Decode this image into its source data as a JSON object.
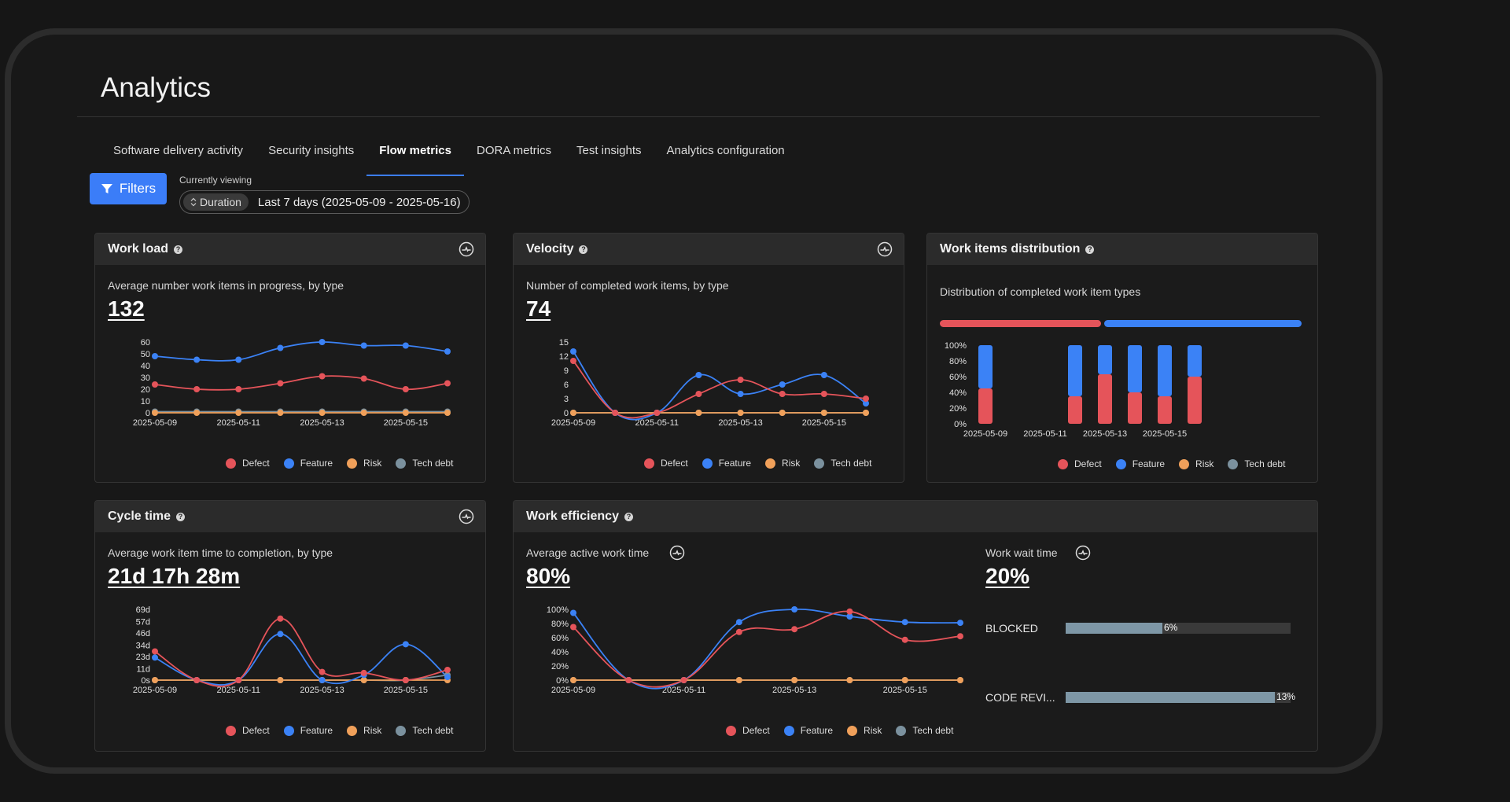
{
  "page": {
    "title": "Analytics"
  },
  "tabs": [
    {
      "label": "Software delivery activity",
      "active": false
    },
    {
      "label": "Security insights",
      "active": false
    },
    {
      "label": "Flow metrics",
      "active": true
    },
    {
      "label": "DORA metrics",
      "active": false
    },
    {
      "label": "Test insights",
      "active": false
    },
    {
      "label": "Analytics configuration",
      "active": false
    }
  ],
  "filters": {
    "button_label": "Filters",
    "currently_viewing_label": "Currently viewing",
    "duration_tag": "Duration",
    "duration_value": "Last 7 days (2025-05-09 - 2025-05-16)"
  },
  "legend_series": [
    {
      "name": "Defect",
      "color": "#e5545a"
    },
    {
      "name": "Feature",
      "color": "#3b82f6"
    },
    {
      "name": "Risk",
      "color": "#f0a05a"
    },
    {
      "name": "Tech debt",
      "color": "#7b919e"
    }
  ],
  "cards": {
    "workload": {
      "title": "Work load",
      "subtitle": "Average number work items in progress, by type",
      "value": "132"
    },
    "velocity": {
      "title": "Velocity",
      "subtitle": "Number of completed work items, by type",
      "value": "74"
    },
    "distribution": {
      "title": "Work items distribution",
      "subtitle": "Distribution of completed work item types"
    },
    "cycle": {
      "title": "Cycle time",
      "subtitle": "Average work item time to completion, by type",
      "value": "21d 17h 28m"
    },
    "efficiency": {
      "title": "Work efficiency",
      "active_label": "Average active work time",
      "active_value": "80%",
      "wait_label": "Work wait time",
      "wait_value": "20%",
      "wait_rows": [
        {
          "label": "BLOCKED",
          "pct": 6,
          "pct_label": "6%"
        },
        {
          "label": "CODE REVI...",
          "pct": 13,
          "pct_label": "13%"
        }
      ]
    }
  },
  "chart_data": [
    {
      "id": "workload",
      "type": "line",
      "x": [
        "2025-05-09",
        "2025-05-10",
        "2025-05-11",
        "2025-05-12",
        "2025-05-13",
        "2025-05-14",
        "2025-05-15",
        "2025-05-16"
      ],
      "xtick_labels": [
        "2025-05-09",
        "2025-05-11",
        "2025-05-13",
        "2025-05-15"
      ],
      "ylim": [
        0,
        60
      ],
      "yticks": [
        0,
        10,
        20,
        30,
        40,
        50,
        60
      ],
      "ytick_labels": [
        "0",
        "10",
        "20",
        "30",
        "40",
        "50",
        "60"
      ],
      "series": [
        {
          "name": "Defect",
          "values": [
            24,
            20,
            20,
            25,
            31,
            29,
            20,
            25
          ]
        },
        {
          "name": "Feature",
          "values": [
            48,
            45,
            45,
            55,
            60,
            57,
            57,
            52
          ]
        },
        {
          "name": "Risk",
          "values": [
            0,
            0,
            0,
            0,
            0,
            0,
            0,
            0
          ]
        },
        {
          "name": "Tech debt",
          "values": [
            1,
            1,
            1,
            1,
            1,
            1,
            1,
            1
          ]
        }
      ]
    },
    {
      "id": "velocity",
      "type": "line",
      "x": [
        "2025-05-09",
        "2025-05-10",
        "2025-05-11",
        "2025-05-12",
        "2025-05-13",
        "2025-05-14",
        "2025-05-15",
        "2025-05-16"
      ],
      "xtick_labels": [
        "2025-05-09",
        "2025-05-11",
        "2025-05-13",
        "2025-05-15"
      ],
      "ylim": [
        0,
        15
      ],
      "yticks": [
        0,
        3,
        6,
        9,
        12,
        15
      ],
      "ytick_labels": [
        "0",
        "3",
        "6",
        "9",
        "12",
        "15"
      ],
      "series": [
        {
          "name": "Defect",
          "values": [
            11,
            0,
            0,
            4,
            7,
            4,
            4,
            3
          ]
        },
        {
          "name": "Feature",
          "values": [
            13,
            0,
            0,
            8,
            4,
            6,
            8,
            2
          ]
        },
        {
          "name": "Risk",
          "values": [
            0,
            0,
            0,
            0,
            0,
            0,
            0,
            0
          ]
        },
        {
          "name": "Tech debt",
          "values": [
            0,
            0,
            0,
            0,
            0,
            0,
            0,
            0
          ]
        }
      ]
    },
    {
      "id": "distribution",
      "type": "bar",
      "x": [
        "2025-05-09",
        "2025-05-10",
        "2025-05-11",
        "2025-05-12",
        "2025-05-13",
        "2025-05-14",
        "2025-05-15",
        "2025-05-16"
      ],
      "xtick_labels": [
        "2025-05-09",
        "2025-05-11",
        "2025-05-13",
        "2025-05-15"
      ],
      "ylim": [
        0,
        100
      ],
      "yticks": [
        0,
        20,
        40,
        60,
        80,
        100
      ],
      "ytick_labels": [
        "0%",
        "20%",
        "40%",
        "60%",
        "80%",
        "100%"
      ],
      "stacked": true,
      "series": [
        {
          "name": "Defect",
          "values": [
            45,
            0,
            0,
            35,
            63,
            40,
            35,
            60
          ]
        },
        {
          "name": "Feature",
          "values": [
            55,
            0,
            0,
            65,
            37,
            60,
            65,
            40
          ]
        }
      ],
      "overall_split": {
        "Defect": 45,
        "Feature": 55
      }
    },
    {
      "id": "cycle",
      "type": "line",
      "x": [
        "2025-05-09",
        "2025-05-10",
        "2025-05-11",
        "2025-05-12",
        "2025-05-13",
        "2025-05-14",
        "2025-05-15",
        "2025-05-16"
      ],
      "xtick_labels": [
        "2025-05-09",
        "2025-05-11",
        "2025-05-13",
        "2025-05-15"
      ],
      "ylim": [
        0,
        69
      ],
      "yticks": [
        0,
        11,
        23,
        34,
        46,
        57,
        69
      ],
      "ytick_labels": [
        "0s",
        "11d",
        "23d",
        "34d",
        "46d",
        "57d",
        "69d"
      ],
      "series": [
        {
          "name": "Defect",
          "values": [
            28,
            0,
            0,
            60,
            8,
            7,
            0,
            10
          ]
        },
        {
          "name": "Feature",
          "values": [
            22,
            0,
            0,
            45,
            0,
            5,
            35,
            3
          ]
        },
        {
          "name": "Risk",
          "values": [
            0,
            0,
            0,
            0,
            0,
            0,
            0,
            0
          ]
        },
        {
          "name": "Tech debt",
          "values": [
            0,
            0,
            0,
            0,
            0,
            0,
            0,
            5
          ]
        }
      ]
    },
    {
      "id": "efficiency",
      "type": "line",
      "x": [
        "2025-05-09",
        "2025-05-10",
        "2025-05-11",
        "2025-05-12",
        "2025-05-13",
        "2025-05-14",
        "2025-05-15",
        "2025-05-16"
      ],
      "xtick_labels": [
        "2025-05-09",
        "2025-05-11",
        "2025-05-13",
        "2025-05-15"
      ],
      "ylim": [
        0,
        100
      ],
      "yticks": [
        0,
        20,
        40,
        60,
        80,
        100
      ],
      "ytick_labels": [
        "0%",
        "20%",
        "40%",
        "60%",
        "80%",
        "100%"
      ],
      "series": [
        {
          "name": "Defect",
          "values": [
            75,
            0,
            0,
            68,
            72,
            97,
            57,
            62
          ]
        },
        {
          "name": "Feature",
          "values": [
            95,
            0,
            0,
            82,
            100,
            90,
            82,
            81
          ]
        },
        {
          "name": "Risk",
          "values": [
            0,
            0,
            0,
            0,
            0,
            0,
            0,
            0
          ]
        },
        {
          "name": "Tech debt",
          "values": [
            0,
            0,
            0,
            0,
            0,
            0,
            0,
            0
          ]
        }
      ]
    }
  ]
}
